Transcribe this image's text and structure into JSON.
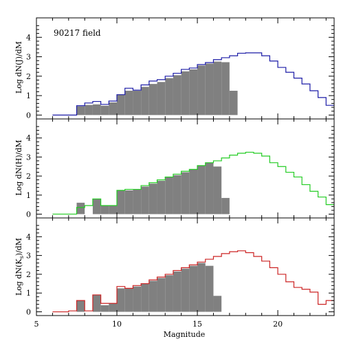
{
  "chart_data": [
    {
      "type": "histogram",
      "title": "90217 field",
      "ylabel": "Log dN(J)/dM",
      "xlabel": "",
      "xlim": [
        5,
        23.5
      ],
      "ylim": [
        -0.2,
        5
      ],
      "bin_width": 0.5,
      "yticks": [
        0,
        1,
        2,
        3,
        4
      ],
      "ytick_labels": [
        "0",
        "1",
        "2",
        "3",
        "4"
      ],
      "x_tick_labels": [],
      "series": [
        {
          "name": "",
          "kind": "filled",
          "color": "#808080",
          "bins": [
            [
              6.0,
              0
            ],
            [
              6.5,
              0
            ],
            [
              7.0,
              0
            ],
            [
              7.5,
              0.45
            ],
            [
              8.0,
              0.52
            ],
            [
              8.5,
              0.55
            ],
            [
              9.0,
              0.48
            ],
            [
              9.5,
              0.65
            ],
            [
              10.0,
              1.05
            ],
            [
              10.5,
              1.25
            ],
            [
              11.0,
              1.25
            ],
            [
              11.5,
              1.45
            ],
            [
              12.0,
              1.6
            ],
            [
              12.5,
              1.7
            ],
            [
              13.0,
              1.9
            ],
            [
              13.5,
              2.05
            ],
            [
              14.0,
              2.25
            ],
            [
              14.5,
              2.35
            ],
            [
              15.0,
              2.55
            ],
            [
              15.5,
              2.65
            ],
            [
              16.0,
              2.75
            ],
            [
              16.5,
              2.72
            ],
            [
              17.0,
              1.25
            ]
          ]
        },
        {
          "name": "",
          "kind": "step",
          "color": "#1a1aa6",
          "bins": [
            [
              6.0,
              0
            ],
            [
              6.5,
              0
            ],
            [
              7.0,
              0
            ],
            [
              7.5,
              0.48
            ],
            [
              8.0,
              0.62
            ],
            [
              8.5,
              0.7
            ],
            [
              9.0,
              0.55
            ],
            [
              9.5,
              0.72
            ],
            [
              10.0,
              1.05
            ],
            [
              10.5,
              1.38
            ],
            [
              11.0,
              1.28
            ],
            [
              11.5,
              1.55
            ],
            [
              12.0,
              1.75
            ],
            [
              12.5,
              1.82
            ],
            [
              13.0,
              2.0
            ],
            [
              13.5,
              2.15
            ],
            [
              14.0,
              2.35
            ],
            [
              14.5,
              2.42
            ],
            [
              15.0,
              2.6
            ],
            [
              15.5,
              2.7
            ],
            [
              16.0,
              2.85
            ],
            [
              16.5,
              2.95
            ],
            [
              17.0,
              3.05
            ],
            [
              17.5,
              3.18
            ],
            [
              18.0,
              3.2
            ],
            [
              18.5,
              3.2
            ],
            [
              19.0,
              3.05
            ],
            [
              19.5,
              2.78
            ],
            [
              20.0,
              2.45
            ],
            [
              20.5,
              2.2
            ],
            [
              21.0,
              1.9
            ],
            [
              21.5,
              1.6
            ],
            [
              22.0,
              1.25
            ],
            [
              22.5,
              0.9
            ],
            [
              23.0,
              0.5
            ]
          ]
        }
      ]
    },
    {
      "type": "histogram",
      "title": "",
      "ylabel": "Log dN(H)/dM",
      "xlabel": "",
      "xlim": [
        5,
        23.5
      ],
      "ylim": [
        -0.2,
        5
      ],
      "bin_width": 0.5,
      "yticks": [
        0,
        1,
        2,
        3,
        4
      ],
      "ytick_labels": [
        "0",
        "1",
        "2",
        "3",
        "4"
      ],
      "x_tick_labels": [],
      "series": [
        {
          "name": "",
          "kind": "filled",
          "color": "#808080",
          "bins": [
            [
              6.0,
              0
            ],
            [
              6.5,
              0
            ],
            [
              7.0,
              0
            ],
            [
              7.5,
              0.6
            ],
            [
              8.0,
              0
            ],
            [
              8.5,
              0.8
            ],
            [
              9.0,
              0.45
            ],
            [
              9.5,
              0.45
            ],
            [
              10.0,
              1.25
            ],
            [
              10.5,
              1.25
            ],
            [
              11.0,
              1.3
            ],
            [
              11.5,
              1.45
            ],
            [
              12.0,
              1.6
            ],
            [
              12.5,
              1.75
            ],
            [
              13.0,
              1.95
            ],
            [
              13.5,
              2.05
            ],
            [
              14.0,
              2.2
            ],
            [
              14.5,
              2.35
            ],
            [
              15.0,
              2.55
            ],
            [
              15.5,
              2.7
            ],
            [
              16.0,
              2.5
            ],
            [
              16.5,
              0.85
            ]
          ]
        },
        {
          "name": "",
          "kind": "step",
          "color": "#22cc22",
          "bins": [
            [
              6.0,
              0
            ],
            [
              6.5,
              0
            ],
            [
              7.0,
              0
            ],
            [
              7.5,
              0.35
            ],
            [
              8.0,
              0.45
            ],
            [
              8.5,
              0.8
            ],
            [
              9.0,
              0.45
            ],
            [
              9.5,
              0.45
            ],
            [
              10.0,
              1.25
            ],
            [
              10.5,
              1.3
            ],
            [
              11.0,
              1.3
            ],
            [
              11.5,
              1.5
            ],
            [
              12.0,
              1.65
            ],
            [
              12.5,
              1.8
            ],
            [
              13.0,
              1.95
            ],
            [
              13.5,
              2.1
            ],
            [
              14.0,
              2.25
            ],
            [
              14.5,
              2.35
            ],
            [
              15.0,
              2.55
            ],
            [
              15.5,
              2.7
            ],
            [
              16.0,
              2.8
            ],
            [
              16.5,
              2.95
            ],
            [
              17.0,
              3.1
            ],
            [
              17.5,
              3.2
            ],
            [
              18.0,
              3.25
            ],
            [
              18.5,
              3.2
            ],
            [
              19.0,
              3.05
            ],
            [
              19.5,
              2.7
            ],
            [
              20.0,
              2.5
            ],
            [
              20.5,
              2.2
            ],
            [
              21.0,
              1.95
            ],
            [
              21.5,
              1.55
            ],
            [
              22.0,
              1.2
            ],
            [
              22.5,
              0.9
            ],
            [
              23.0,
              0.5
            ]
          ]
        }
      ]
    },
    {
      "type": "histogram",
      "title": "",
      "ylabel": "Log dN(Ks)/dM",
      "ylabel_main": "Log dN(K",
      "ylabel_sub": "s",
      "ylabel_tail": ")/dM",
      "xlabel": "Magnitude",
      "xlim": [
        5,
        23.5
      ],
      "ylim": [
        -0.2,
        5
      ],
      "bin_width": 0.5,
      "yticks": [
        0,
        1,
        2,
        3,
        4
      ],
      "ytick_labels": [
        "0",
        "1",
        "2",
        "3",
        "4"
      ],
      "xticks": [
        5,
        10,
        15,
        20
      ],
      "x_tick_labels": [
        "5",
        "10",
        "15",
        "20"
      ],
      "series": [
        {
          "name": "",
          "kind": "filled",
          "color": "#808080",
          "bins": [
            [
              6.0,
              0
            ],
            [
              6.5,
              0
            ],
            [
              7.0,
              0
            ],
            [
              7.5,
              0.6
            ],
            [
              8.0,
              0
            ],
            [
              8.5,
              0.9
            ],
            [
              9.0,
              0.35
            ],
            [
              9.5,
              0.45
            ],
            [
              10.0,
              1.25
            ],
            [
              10.5,
              1.25
            ],
            [
              11.0,
              1.35
            ],
            [
              11.5,
              1.5
            ],
            [
              12.0,
              1.65
            ],
            [
              12.5,
              1.8
            ],
            [
              13.0,
              1.95
            ],
            [
              13.5,
              2.15
            ],
            [
              14.0,
              2.3
            ],
            [
              14.5,
              2.45
            ],
            [
              15.0,
              2.6
            ],
            [
              15.5,
              2.45
            ],
            [
              16.0,
              0.85
            ]
          ]
        },
        {
          "name": "",
          "kind": "step",
          "color": "#cc2222",
          "bins": [
            [
              6.0,
              0
            ],
            [
              6.5,
              0
            ],
            [
              7.0,
              0.05
            ],
            [
              7.5,
              0.6
            ],
            [
              8.0,
              0.05
            ],
            [
              8.5,
              0.9
            ],
            [
              9.0,
              0.45
            ],
            [
              9.5,
              0.45
            ],
            [
              10.0,
              1.35
            ],
            [
              10.5,
              1.25
            ],
            [
              11.0,
              1.4
            ],
            [
              11.5,
              1.5
            ],
            [
              12.0,
              1.7
            ],
            [
              12.5,
              1.85
            ],
            [
              13.0,
              2.0
            ],
            [
              13.5,
              2.2
            ],
            [
              14.0,
              2.35
            ],
            [
              14.5,
              2.5
            ],
            [
              15.0,
              2.65
            ],
            [
              15.5,
              2.8
            ],
            [
              16.0,
              2.95
            ],
            [
              16.5,
              3.1
            ],
            [
              17.0,
              3.2
            ],
            [
              17.5,
              3.25
            ],
            [
              18.0,
              3.15
            ],
            [
              18.5,
              2.95
            ],
            [
              19.0,
              2.7
            ],
            [
              19.5,
              2.35
            ],
            [
              20.0,
              2.0
            ],
            [
              20.5,
              1.6
            ],
            [
              21.0,
              1.3
            ],
            [
              21.5,
              1.2
            ],
            [
              22.0,
              1.05
            ],
            [
              22.5,
              0.4
            ],
            [
              23.0,
              0.6
            ]
          ]
        }
      ]
    }
  ]
}
